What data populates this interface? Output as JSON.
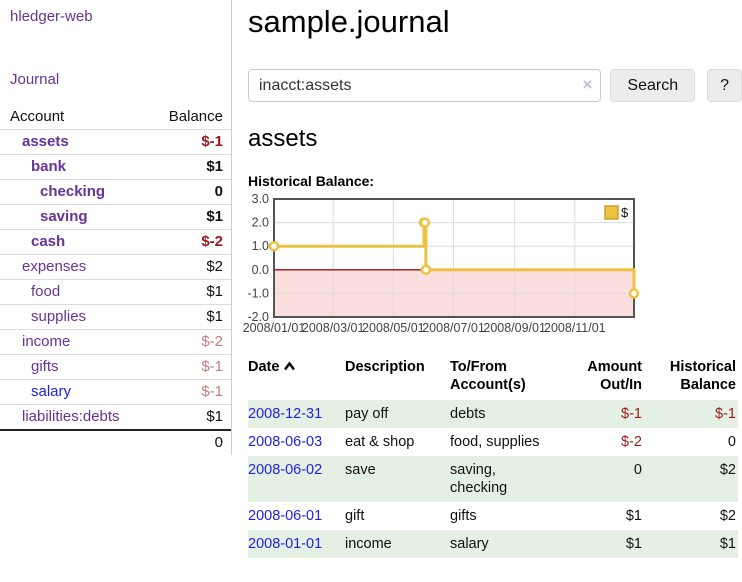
{
  "brand": "hledger-web",
  "sidebar": {
    "journal_link": "Journal",
    "accounts": {
      "header_account": "Account",
      "header_balance": "Balance",
      "rows": [
        {
          "name": "assets",
          "balance": "$-1",
          "depth": 1,
          "matched": true,
          "name_style": "purple",
          "balance_style": "neg-strong"
        },
        {
          "name": "bank",
          "balance": "$1",
          "depth": 2,
          "matched": true,
          "name_style": "purple",
          "balance_style": "pos"
        },
        {
          "name": "checking",
          "balance": "0",
          "depth": 3,
          "matched": true,
          "name_style": "purple",
          "balance_style": "pos"
        },
        {
          "name": "saving",
          "balance": "$1",
          "depth": 3,
          "matched": true,
          "name_style": "purple",
          "balance_style": "pos"
        },
        {
          "name": "cash",
          "balance": "$-2",
          "depth": 2,
          "matched": true,
          "name_style": "purple",
          "balance_style": "neg-strong"
        },
        {
          "name": "expenses",
          "balance": "$2",
          "depth": 1,
          "matched": false,
          "name_style": "purple",
          "balance_style": "pos"
        },
        {
          "name": "food",
          "balance": "$1",
          "depth": 2,
          "matched": false,
          "name_style": "purple",
          "balance_style": "pos"
        },
        {
          "name": "supplies",
          "balance": "$1",
          "depth": 2,
          "matched": false,
          "name_style": "purple",
          "balance_style": "pos"
        },
        {
          "name": "income",
          "balance": "$-2",
          "depth": 1,
          "matched": false,
          "name_style": "purple",
          "balance_style": "neg-soft"
        },
        {
          "name": "gifts",
          "balance": "$-1",
          "depth": 2,
          "matched": false,
          "name_style": "purple",
          "balance_style": "neg-soft"
        },
        {
          "name": "salary",
          "balance": "$-1",
          "depth": 2,
          "matched": false,
          "name_style": "blue",
          "balance_style": "neg-soft"
        },
        {
          "name": "liabilities:debts",
          "balance": "$1",
          "depth": 1,
          "matched": false,
          "name_style": "purple",
          "balance_style": "pos"
        }
      ],
      "total": "0"
    }
  },
  "main": {
    "title": "sample.journal",
    "search": {
      "value": "inacct:assets",
      "clear_icon": "×",
      "search_button": "Search",
      "help_button": "?"
    },
    "account_heading": "assets",
    "section_label": "Historical Balance:"
  },
  "chart_data": {
    "type": "line",
    "step": true,
    "title": "Historical Balance:",
    "series": [
      {
        "name": "$",
        "color": "#edc240",
        "points": [
          [
            "2008-01-01",
            1
          ],
          [
            "2008-06-01",
            2
          ],
          [
            "2008-06-02",
            2
          ],
          [
            "2008-06-03",
            0
          ],
          [
            "2008-12-31",
            -1
          ]
        ]
      }
    ],
    "xrange": [
      "2008-01-01",
      "2008-12-31"
    ],
    "ylim": [
      -2,
      3
    ],
    "yticks": [
      "3.0",
      "2.0",
      "1.0",
      "0.0",
      "-1.0",
      "-2.0"
    ],
    "xticks": [
      {
        "label": "2008/01/01",
        "date": "2008-01-01"
      },
      {
        "label": "2008/03/01",
        "date": "2008-03-01"
      },
      {
        "label": "2008/05/01",
        "date": "2008-05-01"
      },
      {
        "label": "2008/07/01",
        "date": "2008-07-01"
      },
      {
        "label": "2008/09/01",
        "date": "2008-09-01"
      },
      {
        "label": "2008/11/01",
        "date": "2008-11-01"
      }
    ],
    "legend": {
      "label": "$",
      "position": "top-right",
      "swatch_fill": "#edc240",
      "swatch_border": "#c9a32f"
    },
    "grid": true,
    "grid_color": "#dcdcdc",
    "border_color": "#545454",
    "negative_region_color": "#fbdede",
    "zero_line_color": "#a01010",
    "marker_fill": "#ffffff"
  },
  "register": {
    "headers": {
      "date": [
        "Date"
      ],
      "description": [
        "Description"
      ],
      "tofrom": [
        "To/From",
        "Account(s)"
      ],
      "amount": [
        "Amount",
        "Out/In"
      ],
      "balance": [
        "Historical",
        "Balance"
      ]
    },
    "rows": [
      {
        "date": "2008-12-31",
        "description": "pay off",
        "accounts": [
          "debts"
        ],
        "amount": "$-1",
        "amount_neg": true,
        "balance": "$-1",
        "balance_neg": true
      },
      {
        "date": "2008-06-03",
        "description": "eat & shop",
        "accounts": [
          "food, supplies"
        ],
        "amount": "$-2",
        "amount_neg": true,
        "balance": "0",
        "balance_neg": false
      },
      {
        "date": "2008-06-02",
        "description": "save",
        "accounts": [
          "saving,",
          "checking"
        ],
        "amount": "0",
        "amount_neg": false,
        "balance": "$2",
        "balance_neg": false
      },
      {
        "date": "2008-06-01",
        "description": "gift",
        "accounts": [
          "gifts"
        ],
        "amount": "$1",
        "amount_neg": false,
        "balance": "$2",
        "balance_neg": false
      },
      {
        "date": "2008-01-01",
        "description": "income",
        "accounts": [
          "salary"
        ],
        "amount": "$1",
        "amount_neg": false,
        "balance": "$1",
        "balance_neg": false
      }
    ]
  }
}
